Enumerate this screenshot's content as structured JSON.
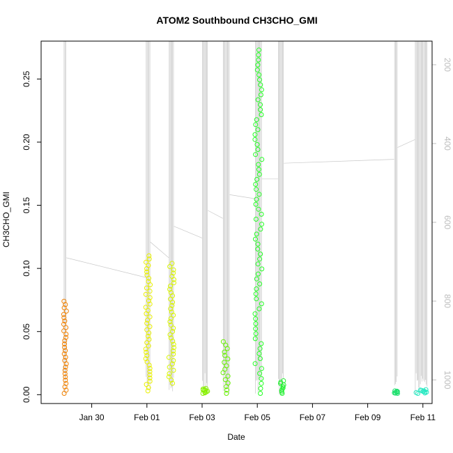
{
  "chart_data": {
    "type": "scatter",
    "title": "ATOM2 Southbound CH3CHO_GMI",
    "xlabel": "Date",
    "ylabel": "CH3CHO_GMI",
    "xlim": [
      "2017-01-28T04:00",
      "2017-02-11T08:00"
    ],
    "ylim": [
      -0.007,
      0.28
    ],
    "yticks": [
      0.0,
      0.05,
      0.1,
      0.15,
      0.2,
      0.25
    ],
    "ytick_labels": [
      "0.00",
      "0.05",
      "0.10",
      "0.15",
      "0.20",
      "0.25"
    ],
    "xticks": [
      "2017-01-30",
      "2017-02-01",
      "2017-02-03",
      "2017-02-05",
      "2017-02-07",
      "2017-02-09",
      "2017-02-11"
    ],
    "xtick_labels": [
      "Jan 30",
      "Feb 01",
      "Feb 03",
      "Feb 05",
      "Feb 07",
      "Feb 09",
      "Feb 11"
    ],
    "y2_label_color": "#bdbdbd",
    "y2lim": [
      1060,
      140
    ],
    "y2ticks": [
      200,
      400,
      600,
      800,
      1000
    ],
    "y2tick_labels": [
      "200",
      "400",
      "600",
      "800",
      "1000"
    ],
    "series": [
      {
        "color": "#f08000",
        "x_start": "2017-01-28T23:30",
        "x_end": "2017-01-29T02:00",
        "y_min": 0.001,
        "y_max": 0.074
      },
      {
        "color": "#e8f000",
        "x_start": "2017-01-31T23:00",
        "x_end": "2017-02-01T03:00",
        "y_min": 0.003,
        "y_max": 0.11
      },
      {
        "color": "#d9f500",
        "x_start": "2017-02-01T19:00",
        "x_end": "2017-02-01T23:30",
        "y_min": 0.009,
        "y_max": 0.104
      },
      {
        "color": "#88f000",
        "x_start": "2017-02-03T00:00",
        "x_end": "2017-02-03T05:00",
        "y_min": 0.001,
        "y_max": 0.005
      },
      {
        "color": "#66f000",
        "x_start": "2017-02-03T18:00",
        "x_end": "2017-02-04T00:00",
        "y_min": 0.001,
        "y_max": 0.042
      },
      {
        "color": "#22ff22",
        "x_start": "2017-02-04T22:00",
        "x_end": "2017-02-05T04:00",
        "y_min": 0.001,
        "y_max": 0.273
      },
      {
        "color": "#22f030",
        "x_start": "2017-02-05T18:00",
        "x_end": "2017-02-05T23:00",
        "y_min": 0.001,
        "y_max": 0.011
      },
      {
        "color": "#22e070",
        "x_start": "2017-02-09T23:00",
        "x_end": "2017-02-10T02:00",
        "y_min": 0.001,
        "y_max": 0.003
      },
      {
        "color": "#22e8c0",
        "x_start": "2017-02-10T17:00",
        "x_end": "2017-02-11T04:00",
        "y_min": 0.001,
        "y_max": 0.004
      }
    ],
    "grid": false,
    "legend": "none"
  }
}
